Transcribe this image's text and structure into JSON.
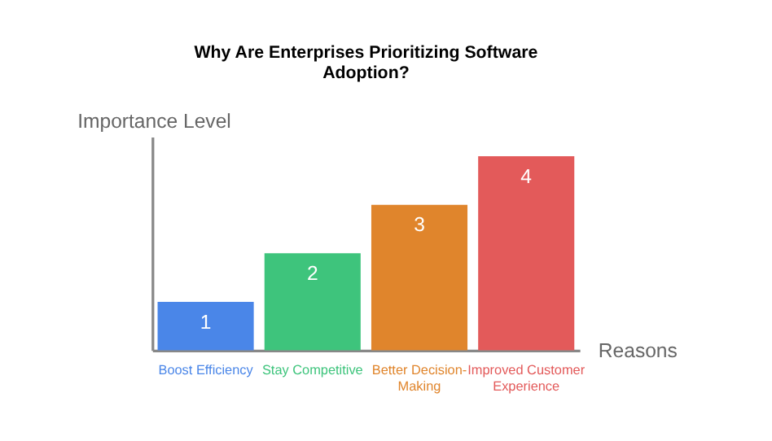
{
  "chart_data": {
    "type": "bar",
    "title": "Why Are Enterprises Prioritizing Software Adoption?",
    "xlabel": "Reasons",
    "ylabel": "Importance Level",
    "categories": [
      "Boost Efficiency",
      "Stay Competitive",
      "Better Decision-Making",
      "Improved Customer Experience"
    ],
    "values": [
      1,
      2,
      3,
      4
    ],
    "colors": [
      "#4a86e8",
      "#3ec47c",
      "#e0852c",
      "#e35a5a"
    ],
    "ylim": [
      0,
      4.4
    ],
    "data_labels": true
  }
}
